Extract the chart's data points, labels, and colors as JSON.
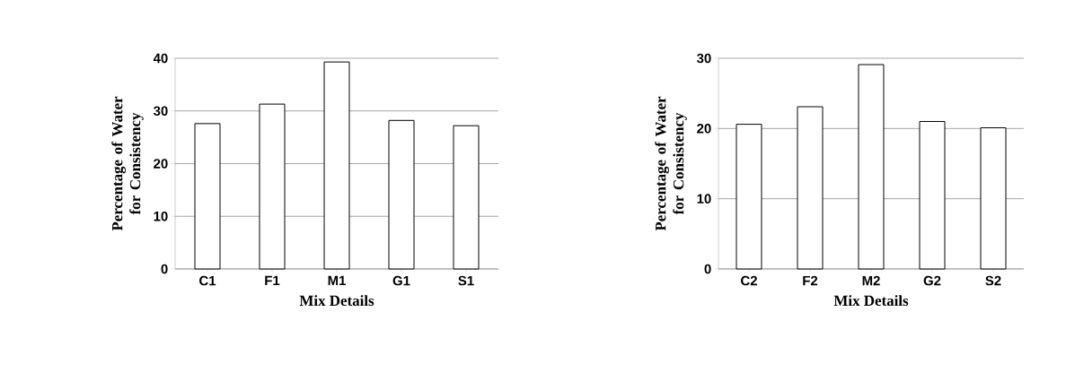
{
  "chart_data": [
    {
      "type": "bar",
      "xlabel": "Mix Details",
      "ylabel": "Percentage of Water for Consistency",
      "categories": [
        "C1",
        "F1",
        "M1",
        "G1",
        "S1"
      ],
      "values": [
        27.6,
        31.3,
        39.3,
        28.2,
        27.2
      ],
      "color": "#ffffff",
      "ylim": [
        0,
        40
      ],
      "yticks": [
        0,
        10,
        20,
        30,
        40
      ],
      "grid": "y"
    },
    {
      "type": "bar",
      "xlabel": "Mix Details",
      "ylabel": "Percentage of Water for Consistency",
      "categories": [
        "C2",
        "F2",
        "M2",
        "G2",
        "S2"
      ],
      "values": [
        20.6,
        23.1,
        29.1,
        21.0,
        20.1
      ],
      "color": "#ffffff",
      "ylim": [
        0,
        30
      ],
      "yticks": [
        0,
        10,
        20,
        30
      ],
      "grid": "y"
    }
  ]
}
